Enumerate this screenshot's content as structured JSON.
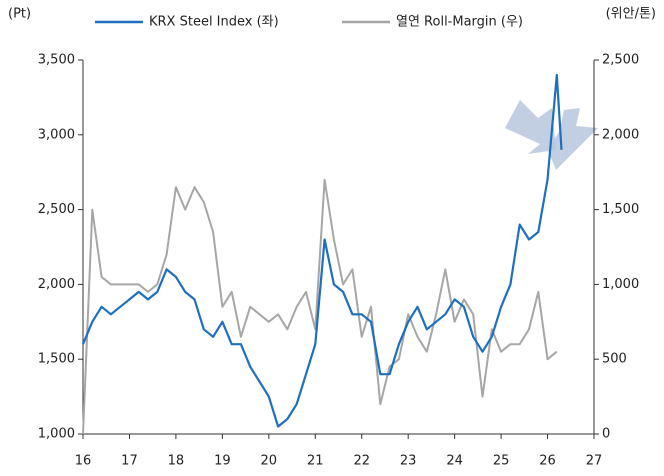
{
  "chart_data": {
    "type": "line",
    "y_label": "(Pt)",
    "y2_label": "(위안/톤)",
    "x": [
      16.0,
      16.2,
      16.4,
      16.6,
      16.8,
      17.0,
      17.2,
      17.4,
      17.6,
      17.8,
      18.0,
      18.2,
      18.4,
      18.6,
      18.8,
      19.0,
      19.2,
      19.4,
      19.6,
      19.8,
      20.0,
      20.2,
      20.4,
      20.6,
      20.8,
      21.0,
      21.2,
      21.4,
      21.6,
      21.8,
      22.0,
      22.2,
      22.4,
      22.6,
      22.8,
      23.0,
      23.2,
      23.4,
      23.6,
      23.8,
      24.0,
      24.2,
      24.4,
      24.6,
      24.8,
      25.0,
      25.2,
      25.4,
      25.6,
      25.8,
      26.0,
      26.2,
      26.3
    ],
    "series": [
      {
        "name": "KRX Steel Index (좌)",
        "color": "#1f6fc0",
        "values": [
          1600,
          1750,
          1850,
          1800,
          1850,
          1900,
          1950,
          1900,
          1950,
          2100,
          2050,
          1950,
          1900,
          1700,
          1650,
          1750,
          1600,
          1600,
          1450,
          1350,
          1250,
          1050,
          1100,
          1200,
          1400,
          1600,
          2300,
          2000,
          1950,
          1800,
          1800,
          1750,
          1400,
          1400,
          1600,
          1750,
          1850,
          1700,
          1750,
          1800,
          1900,
          1850,
          1650,
          1550,
          1650,
          1850,
          2000,
          2400,
          2300,
          2350,
          2700,
          3400,
          2900
        ]
      },
      {
        "name": "열연 Roll-Margin (우)",
        "color": "#a6a6a6",
        "axis": "y2",
        "values": [
          0,
          1500,
          1050,
          1000,
          1000,
          1000,
          1000,
          950,
          1000,
          1200,
          1650,
          1500,
          1650,
          1550,
          1350,
          850,
          950,
          650,
          850,
          800,
          750,
          800,
          700,
          850,
          950,
          700,
          1700,
          1300,
          1000,
          1100,
          650,
          850,
          200,
          450,
          500,
          800,
          650,
          550,
          800,
          1100,
          750,
          900,
          800,
          250,
          700,
          550,
          600,
          600,
          700,
          950,
          500,
          550,
          null
        ]
      }
    ],
    "xlim": [
      16,
      27
    ],
    "xticks": [
      16,
      17,
      18,
      19,
      20,
      21,
      22,
      23,
      24,
      25,
      26,
      27
    ],
    "ylim": [
      1000,
      3500
    ],
    "yticks": [
      {
        "value": 1000,
        "label": "1,000"
      },
      {
        "value": 1500,
        "label": "1,500"
      },
      {
        "value": 2000,
        "label": "2,000"
      },
      {
        "value": 2500,
        "label": "2,500"
      },
      {
        "value": 3000,
        "label": "3,000"
      },
      {
        "value": 3500,
        "label": "3,500"
      }
    ],
    "y2lim": [
      0,
      2500
    ],
    "y2ticks": [
      0,
      500,
      {
        "value": 1000,
        "label": "1,000"
      },
      {
        "value": 1500,
        "label": "1,500"
      },
      {
        "value": 2000,
        "label": "2,000"
      },
      {
        "value": 2500,
        "label": "2,500"
      }
    ],
    "legend": "top",
    "grid": false
  }
}
